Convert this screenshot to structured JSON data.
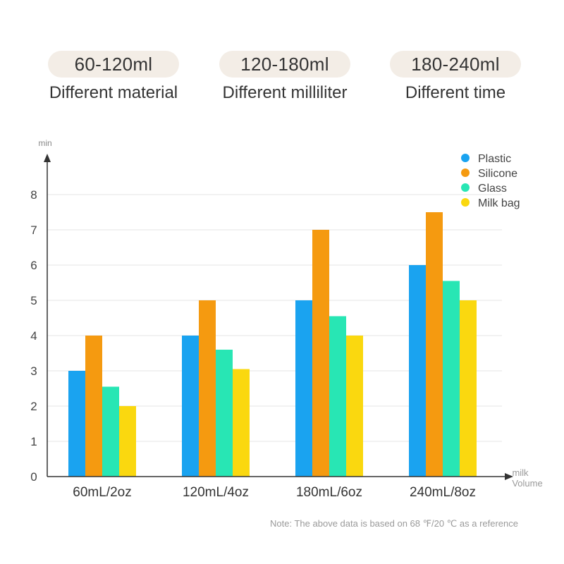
{
  "header": {
    "pills": [
      {
        "range": "60-120ml",
        "caption": "Different material"
      },
      {
        "range": "120-180ml",
        "caption": "Different milliliter"
      },
      {
        "range": "180-240ml",
        "caption": "Different time"
      }
    ]
  },
  "chart_data": {
    "type": "bar",
    "ylabel": "min",
    "xlabel_line1": "milk",
    "xlabel_line2": "Volume",
    "categories": [
      "60mL/2oz",
      "120mL/4oz",
      "180mL/6oz",
      "240mL/8oz"
    ],
    "ylim": [
      0,
      8
    ],
    "yticks": [
      "0",
      "1",
      "2",
      "3",
      "4",
      "5",
      "6",
      "7",
      "8"
    ],
    "grid": true,
    "legend_position": "top-right",
    "series": [
      {
        "name": "Plastic",
        "color": "#1aa3f0",
        "values": [
          3,
          4,
          5,
          6
        ]
      },
      {
        "name": "Silicone",
        "color": "#f59a10",
        "values": [
          4,
          5,
          7,
          7.5
        ]
      },
      {
        "name": "Glass",
        "color": "#28e6b4",
        "values": [
          2.55,
          3.6,
          4.55,
          5.55
        ]
      },
      {
        "name": "Milk bag",
        "color": "#fad80f",
        "values": [
          2,
          3.05,
          4,
          5
        ]
      }
    ]
  },
  "footer": {
    "note": "Note: The above data is based on 68 ℉/20 ℃ as a reference"
  }
}
